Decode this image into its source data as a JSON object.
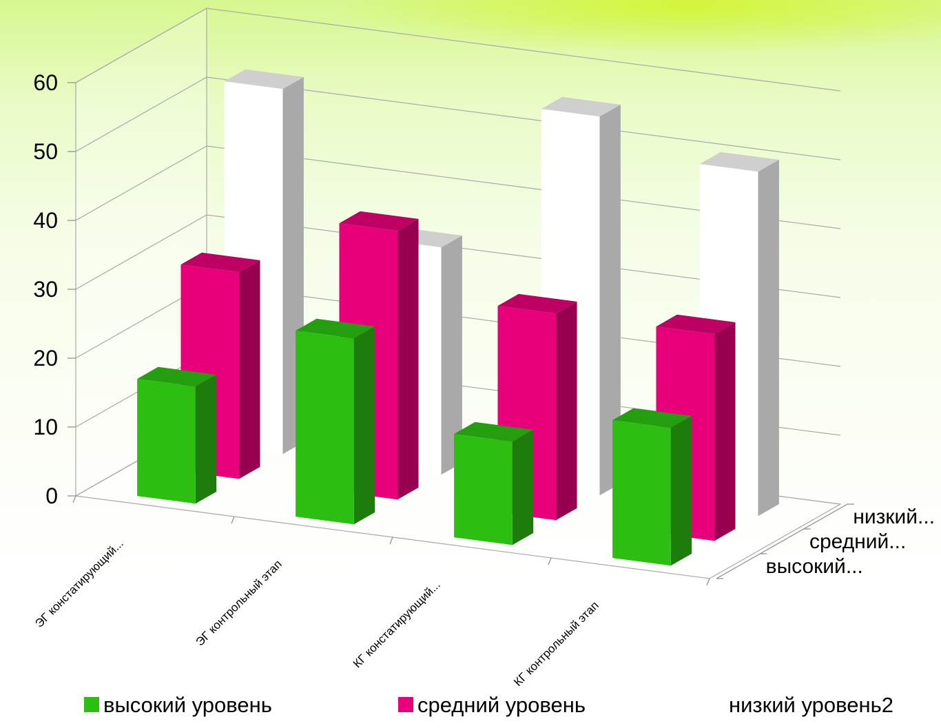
{
  "chart_data": {
    "type": "bar",
    "variant": "3d-column",
    "categories": [
      "ЭГ констатирующий...",
      "ЭГ контрольный этап",
      "КГ констатирующий...",
      "КГ контрольный этап"
    ],
    "depth_labels": [
      "высокий...",
      "средний...",
      "низкий..."
    ],
    "series": [
      {
        "name": "высокий уровень",
        "color": "#2cbf12",
        "values": [
          17,
          27,
          15,
          20
        ]
      },
      {
        "name": "средний уровень",
        "color": "#e8007a",
        "values": [
          30,
          39,
          30,
          30
        ]
      },
      {
        "name": "низкий уровень2",
        "color": "#ffffff",
        "values": [
          53,
          33,
          55,
          50
        ]
      }
    ],
    "y_ticks": [
      "0",
      "10",
      "20",
      "30",
      "40",
      "50",
      "60"
    ],
    "ylim": [
      0,
      60
    ],
    "grid": true,
    "legend_position": "bottom"
  }
}
